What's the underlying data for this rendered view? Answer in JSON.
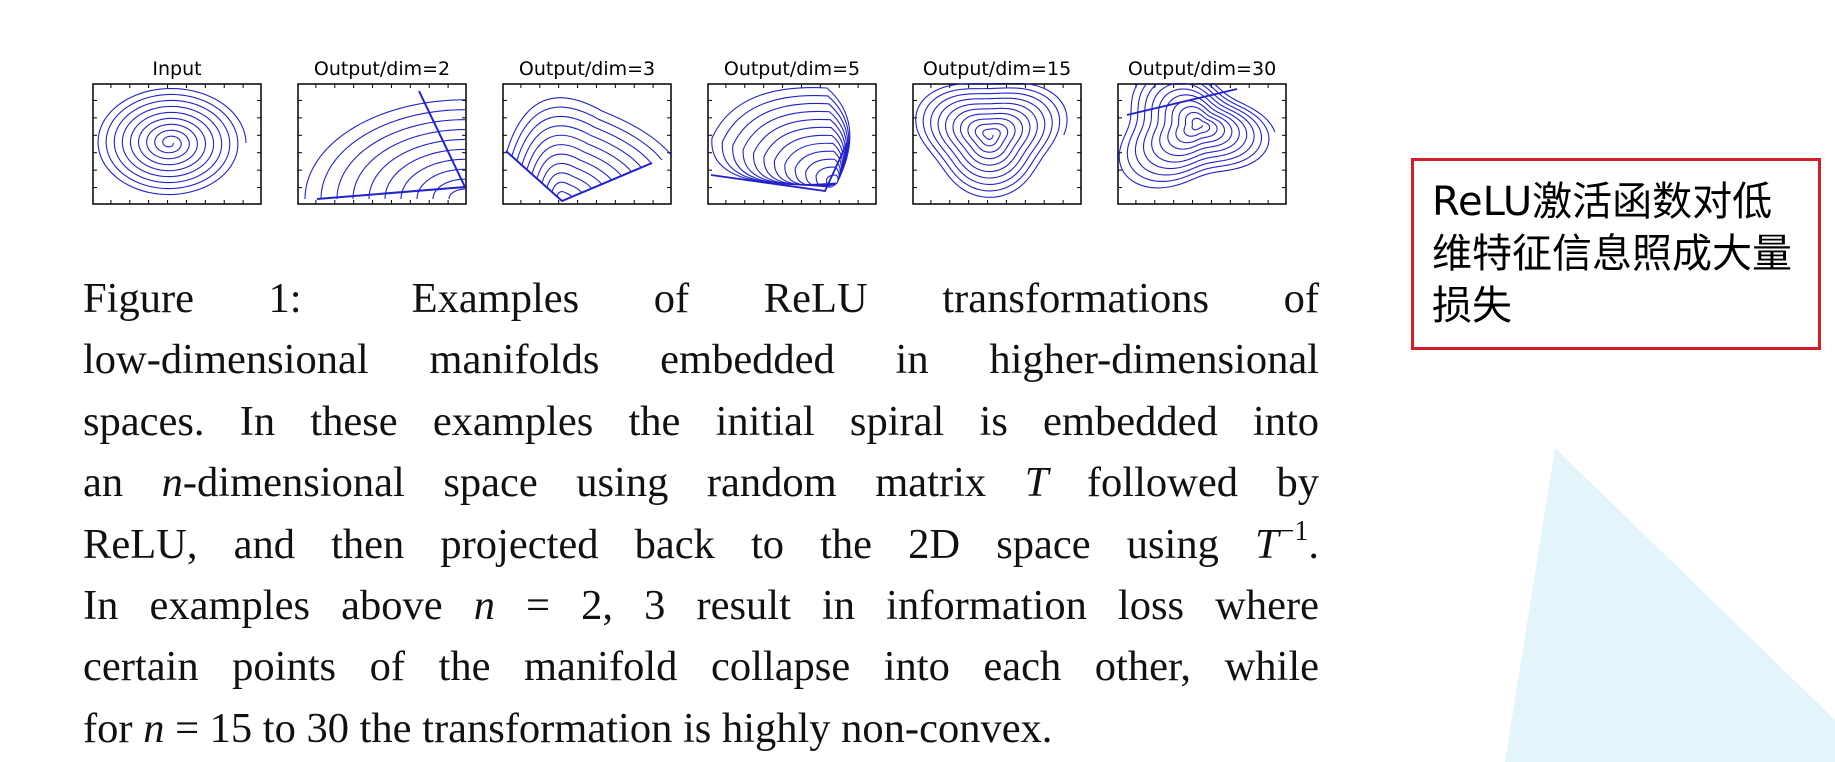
{
  "panels": [
    {
      "title": "Input",
      "kind": "spiral"
    },
    {
      "title": "Output/dim=2",
      "kind": "dim2"
    },
    {
      "title": "Output/dim=3",
      "kind": "dim3"
    },
    {
      "title": "Output/dim=5",
      "kind": "dim5"
    },
    {
      "title": "Output/dim=15",
      "kind": "dim15"
    },
    {
      "title": "Output/dim=30",
      "kind": "dim30"
    }
  ],
  "caption": {
    "label": "Figure 1:",
    "line1_rest": "Examples of ReLU transformations of",
    "line2": "low-dimensional manifolds embedded in higher-dimensional",
    "line3": "spaces. In these examples the initial spiral is embedded into",
    "line4_a": "an ",
    "line4_n": "n",
    "line4_b": "-dimensional space using random matrix ",
    "line4_T": "T",
    "line4_c": " followed by",
    "line5_a": "ReLU, and then projected back to the 2D space using ",
    "line5_T": "T",
    "line5_sup": "−1",
    "line5_b": ".",
    "line6_a": "In examples above ",
    "line6_n": "n",
    "line6_b": " = 2, 3 result in information loss where",
    "line7": "certain points of the manifold collapse into each other, while",
    "line8_a": "for ",
    "line8_n": "n",
    "line8_b": " = 15 to 30 the transformation is highly non-convex."
  },
  "note": {
    "text": "ReLU激活函数对低维特征信息照成大量损失",
    "border_color": "#d0202a"
  },
  "colors": {
    "curve": "#2222cc",
    "triangle": "#e3f4fb"
  }
}
